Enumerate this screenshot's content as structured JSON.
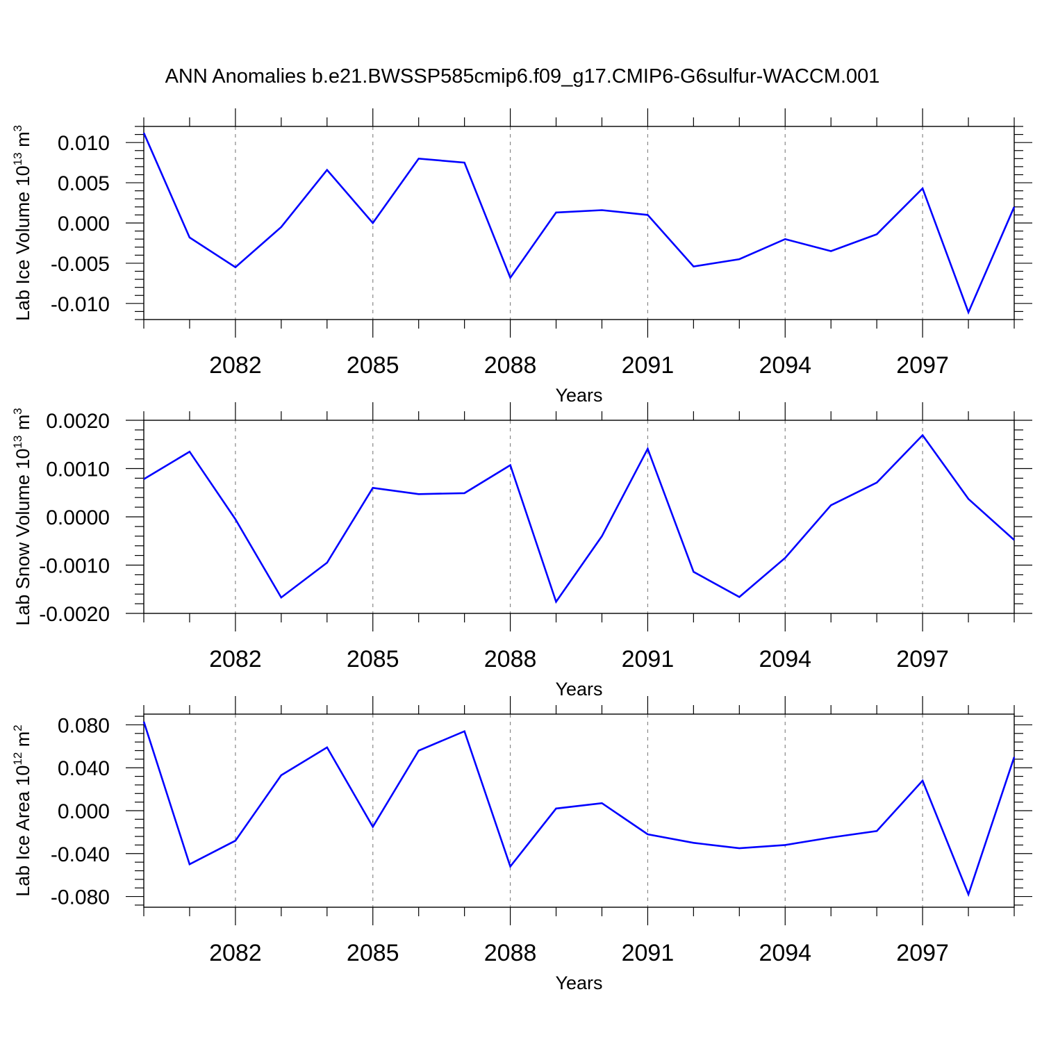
{
  "title": "ANN Anomalies b.e21.BWSSP585cmip6.f09_g17.CMIP6-G6sulfur-WACCM.001",
  "line_color": "#0000ff",
  "grid_color": "#888888",
  "chart_data": [
    {
      "type": "line",
      "ylabel_text": "Lab Ice Volume 10",
      "ylabel_exp": "13",
      "ylabel_unit": "m",
      "ylabel_unit_exp": "3",
      "xlabel": "Years",
      "xticks": [
        2082,
        2085,
        2088,
        2091,
        2094,
        2097
      ],
      "xtick_labels": [
        "2082",
        "2085",
        "2088",
        "2091",
        "2094",
        "2097"
      ],
      "xlim": [
        2080,
        2099
      ],
      "yticks": [
        0.01,
        0.005,
        0.0,
        -0.005,
        -0.01
      ],
      "ytick_labels": [
        "0.010",
        "0.005",
        "0.000",
        "-0.005",
        "-0.010"
      ],
      "ylim": [
        -0.012,
        0.012
      ],
      "grid": "vertical dashed at major x ticks",
      "series": [
        {
          "x": [
            2080,
            2081,
            2082,
            2083,
            2084,
            2085,
            2086,
            2087,
            2088,
            2089,
            2090,
            2091,
            2092,
            2093,
            2094,
            2095,
            2096,
            2097,
            2098,
            2099
          ],
          "values": [
            0.0112,
            -0.0018,
            -0.0055,
            -0.0005,
            0.0066,
            0.0,
            0.008,
            0.0075,
            -0.0068,
            0.0013,
            0.0016,
            0.001,
            -0.0054,
            -0.0045,
            -0.002,
            -0.0035,
            -0.0014,
            0.0043,
            -0.0111,
            0.002
          ]
        }
      ]
    },
    {
      "type": "line",
      "ylabel_text": "Lab Snow Volume 10",
      "ylabel_exp": "13",
      "ylabel_unit": "m",
      "ylabel_unit_exp": "3",
      "xlabel": "Years",
      "xticks": [
        2082,
        2085,
        2088,
        2091,
        2094,
        2097
      ],
      "xtick_labels": [
        "2082",
        "2085",
        "2088",
        "2091",
        "2094",
        "2097"
      ],
      "xlim": [
        2080,
        2099
      ],
      "yticks": [
        0.002,
        0.001,
        0.0,
        -0.001,
        -0.002
      ],
      "ytick_labels": [
        "0.0020",
        "0.0010",
        "0.0000",
        "-0.0010",
        "-0.0020"
      ],
      "ylim": [
        -0.002,
        0.002
      ],
      "grid": "vertical dashed at major x ticks",
      "series": [
        {
          "x": [
            2080,
            2081,
            2082,
            2083,
            2084,
            2085,
            2086,
            2087,
            2088,
            2089,
            2090,
            2091,
            2092,
            2093,
            2094,
            2095,
            2096,
            2097,
            2098,
            2099
          ],
          "values": [
            0.00078,
            0.00135,
            -5e-05,
            -0.00167,
            -0.00095,
            0.0006,
            0.00047,
            0.00049,
            0.00107,
            -0.00176,
            -0.0004,
            0.00141,
            -0.00114,
            -0.00166,
            -0.00085,
            0.00024,
            0.00071,
            0.00169,
            0.00037,
            -0.00048
          ]
        }
      ]
    },
    {
      "type": "line",
      "ylabel_text": "Lab Ice Area 10",
      "ylabel_exp": "12",
      "ylabel_unit": "m",
      "ylabel_unit_exp": "2",
      "xlabel": "Years",
      "xticks": [
        2082,
        2085,
        2088,
        2091,
        2094,
        2097
      ],
      "xtick_labels": [
        "2082",
        "2085",
        "2088",
        "2091",
        "2094",
        "2097"
      ],
      "xlim": [
        2080,
        2099
      ],
      "yticks": [
        0.08,
        0.04,
        0.0,
        -0.04,
        -0.08
      ],
      "ytick_labels": [
        "0.080",
        "0.040",
        "0.000",
        "-0.040",
        "-0.080"
      ],
      "ylim": [
        -0.09,
        0.09
      ],
      "grid": "vertical dashed at major x ticks",
      "series": [
        {
          "x": [
            2080,
            2081,
            2082,
            2083,
            2084,
            2085,
            2086,
            2087,
            2088,
            2089,
            2090,
            2091,
            2092,
            2093,
            2094,
            2095,
            2096,
            2097,
            2098,
            2099
          ],
          "values": [
            0.083,
            -0.05,
            -0.028,
            0.033,
            0.059,
            -0.015,
            0.056,
            0.074,
            -0.052,
            0.002,
            0.007,
            -0.022,
            -0.03,
            -0.035,
            -0.032,
            -0.025,
            -0.019,
            0.028,
            -0.078,
            0.05
          ]
        }
      ]
    }
  ]
}
